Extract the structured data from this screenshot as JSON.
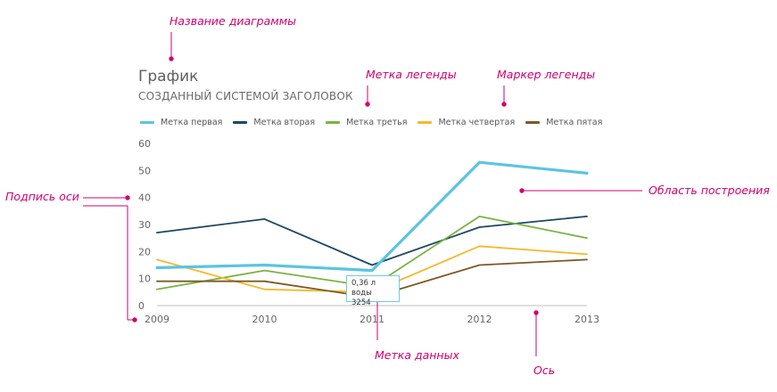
{
  "chart_data": {
    "type": "line",
    "title": "График",
    "subtitle": "СОЗДАННЫЙ СИСТЕМОЙ ЗАГОЛОВОК",
    "x": [
      "2009",
      "2010",
      "2011",
      "2012",
      "2013"
    ],
    "yticks": [
      "0",
      "10",
      "20",
      "30",
      "40",
      "50",
      "60"
    ],
    "ylim": [
      0,
      60
    ],
    "grid": false,
    "legend_position": "top-left",
    "series": [
      {
        "name": "Метка первая",
        "color": "#5bc4e0",
        "values": [
          14,
          15,
          13,
          53,
          49
        ]
      },
      {
        "name": "Метка вторая",
        "color": "#1d4863",
        "values": [
          27,
          32,
          15,
          29,
          33
        ]
      },
      {
        "name": "Метка третья",
        "color": "#7ab342",
        "values": [
          6,
          13,
          7,
          33,
          25
        ]
      },
      {
        "name": "Метка четвертая",
        "color": "#f5b92e",
        "values": [
          17,
          6,
          5,
          22,
          19
        ]
      },
      {
        "name": "Метка пятая",
        "color": "#7d5a22",
        "values": [
          9,
          9,
          3,
          15,
          17
        ]
      }
    ],
    "data_label": {
      "line1": "0,36 л воды",
      "line2": "3254"
    }
  },
  "callouts": {
    "chart_title": "Название диаграммы",
    "legend_label": "Метка легенды",
    "legend_marker": "Маркер легенды",
    "axis_label": "Подпись оси",
    "plot_area": "Область построения",
    "data_label": "Метка данных",
    "axis": "Ось"
  },
  "colors": {
    "callout": "#d2006f",
    "axis": "#bfbfbf"
  }
}
